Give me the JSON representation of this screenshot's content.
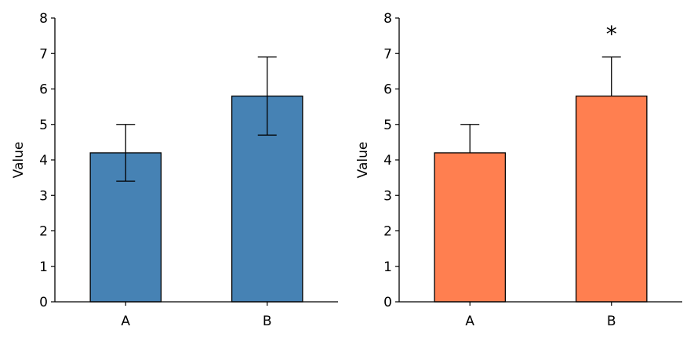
{
  "chart_data": [
    {
      "type": "bar",
      "categories": [
        "A",
        "B"
      ],
      "values": [
        4.2,
        5.8
      ],
      "error": [
        0.8,
        1.1
      ],
      "error_style": "both",
      "ylabel": "Value",
      "xlabel": "",
      "ylim": [
        0,
        8
      ],
      "yticks": [
        0,
        1,
        2,
        3,
        4,
        5,
        6,
        7,
        8
      ],
      "bar_color": "#4682b4",
      "edge_color": "#000000",
      "grid": false,
      "annotations": []
    },
    {
      "type": "bar",
      "categories": [
        "A",
        "B"
      ],
      "values": [
        4.2,
        5.8
      ],
      "error": [
        0.8,
        1.1
      ],
      "error_style": "upper",
      "ylabel": "Value",
      "xlabel": "",
      "ylim": [
        0,
        8
      ],
      "yticks": [
        0,
        1,
        2,
        3,
        4,
        5,
        6,
        7,
        8
      ],
      "bar_color": "#ff7f50",
      "edge_color": "#000000",
      "grid": false,
      "annotations": [
        {
          "category": "B",
          "text": "*"
        }
      ]
    }
  ]
}
